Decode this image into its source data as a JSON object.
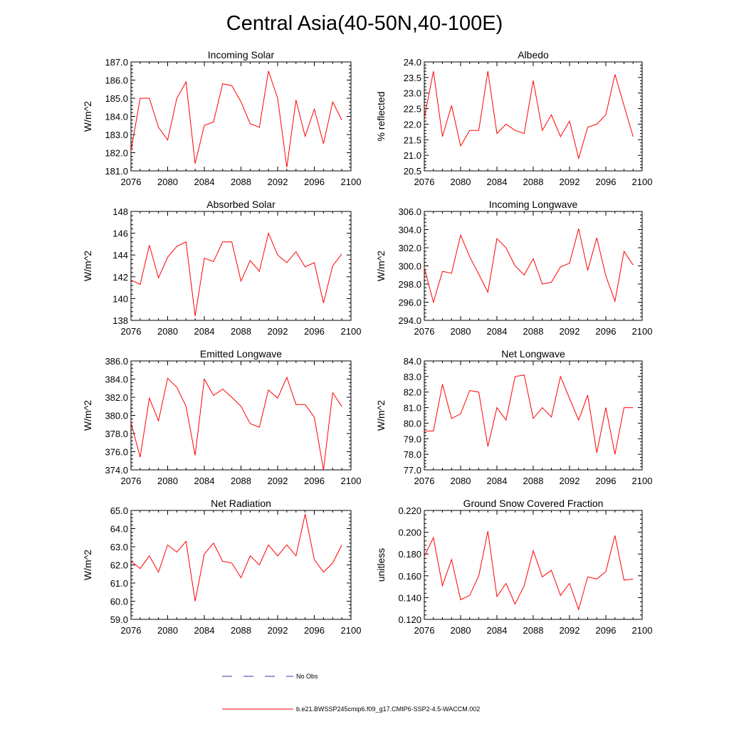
{
  "title": "Central Asia(40-50N,40-100E)",
  "colors": {
    "model": "#ff0000",
    "obs": "#3333aa",
    "axes": "#000000"
  },
  "legend": {
    "obs_label": "No Obs",
    "model_label": "b.e21.BWSSP245cmip6.f09_g17.CMIP6-SSP2-4.5-WACCM.002"
  },
  "chart_data": [
    {
      "type": "line",
      "title": "Incoming Solar",
      "ylabel": "W/m^2",
      "xlim": [
        2076,
        2100
      ],
      "ylim": [
        181.0,
        187.0
      ],
      "xticks": [
        "2076",
        "2080",
        "2084",
        "2088",
        "2092",
        "2096",
        "2100"
      ],
      "yticks": [
        "181.0",
        "182.0",
        "183.0",
        "184.0",
        "185.0",
        "186.0",
        "187.0"
      ],
      "x": [
        2076,
        2077,
        2078,
        2079,
        2080,
        2081,
        2082,
        2083,
        2084,
        2085,
        2086,
        2087,
        2088,
        2089,
        2090,
        2091,
        2092,
        2093,
        2094,
        2095,
        2096,
        2097,
        2098,
        2099
      ],
      "series": [
        {
          "name": "b.e21.BWSSP245cmip6.f09_g17.CMIP6-SSP2-4.5-WACCM.002",
          "values": [
            182.1,
            185.0,
            185.0,
            183.4,
            182.7,
            185.0,
            185.9,
            181.4,
            183.5,
            183.7,
            185.8,
            185.7,
            184.8,
            183.6,
            183.4,
            186.5,
            185.0,
            181.2,
            184.9,
            182.9,
            184.4,
            182.5,
            184.8,
            183.8
          ]
        }
      ]
    },
    {
      "type": "line",
      "title": "Albedo",
      "ylabel": "% reflected",
      "xlim": [
        2076,
        2100
      ],
      "ylim": [
        20.5,
        24.0
      ],
      "xticks": [
        "2076",
        "2080",
        "2084",
        "2088",
        "2092",
        "2096",
        "2100"
      ],
      "yticks": [
        "20.5",
        "21.0",
        "21.5",
        "22.0",
        "22.5",
        "23.0",
        "23.5",
        "24.0"
      ],
      "x": [
        2076,
        2077,
        2078,
        2079,
        2080,
        2081,
        2082,
        2083,
        2084,
        2085,
        2086,
        2087,
        2088,
        2089,
        2090,
        2091,
        2092,
        2093,
        2094,
        2095,
        2096,
        2097,
        2098,
        2099
      ],
      "series": [
        {
          "name": "b.e21.BWSSP245cmip6.f09_g17.CMIP6-SSP2-4.5-WACCM.002",
          "values": [
            22.2,
            23.7,
            21.6,
            22.6,
            21.3,
            21.8,
            21.8,
            23.7,
            21.7,
            22.0,
            21.8,
            21.7,
            23.4,
            21.8,
            22.3,
            21.6,
            22.1,
            20.9,
            21.9,
            22.0,
            22.3,
            23.6,
            22.6,
            21.6
          ]
        }
      ]
    },
    {
      "type": "line",
      "title": "Absorbed Solar",
      "ylabel": "W/m^2",
      "xlim": [
        2076,
        2100
      ],
      "ylim": [
        138,
        148
      ],
      "xticks": [
        "2076",
        "2080",
        "2084",
        "2088",
        "2092",
        "2096",
        "2100"
      ],
      "yticks": [
        "138",
        "140",
        "142",
        "144",
        "146",
        "148"
      ],
      "x": [
        2076,
        2077,
        2078,
        2079,
        2080,
        2081,
        2082,
        2083,
        2084,
        2085,
        2086,
        2087,
        2088,
        2089,
        2090,
        2091,
        2092,
        2093,
        2094,
        2095,
        2096,
        2097,
        2098,
        2099
      ],
      "series": [
        {
          "name": "b.e21.BWSSP245cmip6.f09_g17.CMIP6-SSP2-4.5-WACCM.002",
          "values": [
            141.7,
            141.3,
            144.9,
            141.9,
            143.8,
            144.8,
            145.2,
            138.4,
            143.7,
            143.4,
            145.2,
            145.2,
            141.6,
            143.5,
            142.5,
            146.0,
            144.0,
            143.3,
            144.3,
            142.9,
            143.3,
            139.6,
            143.0,
            144.1
          ]
        }
      ]
    },
    {
      "type": "line",
      "title": "Incoming Longwave",
      "ylabel": "W/m^2",
      "xlim": [
        2076,
        2100
      ],
      "ylim": [
        294.0,
        306.0
      ],
      "xticks": [
        "2076",
        "2080",
        "2084",
        "2088",
        "2092",
        "2096",
        "2100"
      ],
      "yticks": [
        "294.0",
        "296.0",
        "298.0",
        "300.0",
        "302.0",
        "304.0",
        "306.0"
      ],
      "x": [
        2076,
        2077,
        2078,
        2079,
        2080,
        2081,
        2082,
        2083,
        2084,
        2085,
        2086,
        2087,
        2088,
        2089,
        2090,
        2091,
        2092,
        2093,
        2094,
        2095,
        2096,
        2097,
        2098,
        2099
      ],
      "series": [
        {
          "name": "b.e21.BWSSP245cmip6.f09_g17.CMIP6-SSP2-4.5-WACCM.002",
          "values": [
            299.8,
            296.0,
            299.4,
            299.2,
            303.4,
            301.0,
            299.1,
            297.1,
            303.0,
            302.0,
            300.0,
            299.0,
            300.8,
            298.0,
            298.2,
            299.9,
            300.3,
            304.1,
            299.5,
            303.1,
            298.9,
            296.1,
            301.6,
            300.1
          ]
        }
      ]
    },
    {
      "type": "line",
      "title": "Emitted Longwave",
      "ylabel": "W/m^2",
      "xlim": [
        2076,
        2100
      ],
      "ylim": [
        374.0,
        386.0
      ],
      "xticks": [
        "2076",
        "2080",
        "2084",
        "2088",
        "2092",
        "2096",
        "2100"
      ],
      "yticks": [
        "374.0",
        "376.0",
        "378.0",
        "380.0",
        "382.0",
        "384.0",
        "386.0"
      ],
      "x": [
        2076,
        2077,
        2078,
        2079,
        2080,
        2081,
        2082,
        2083,
        2084,
        2085,
        2086,
        2087,
        2088,
        2089,
        2090,
        2091,
        2092,
        2093,
        2094,
        2095,
        2096,
        2097,
        2098,
        2099
      ],
      "series": [
        {
          "name": "b.e21.BWSSP245cmip6.f09_g17.CMIP6-SSP2-4.5-WACCM.002",
          "values": [
            379.2,
            375.4,
            381.9,
            379.4,
            384.1,
            383.1,
            381.0,
            375.6,
            384.0,
            382.2,
            382.9,
            382.0,
            381.0,
            379.1,
            378.7,
            382.8,
            381.9,
            384.2,
            381.2,
            381.2,
            379.8,
            374.0,
            382.5,
            381.0
          ]
        }
      ]
    },
    {
      "type": "line",
      "title": "Net Longwave",
      "ylabel": "W/m^2",
      "xlim": [
        2076,
        2100
      ],
      "ylim": [
        77.0,
        84.0
      ],
      "xticks": [
        "2076",
        "2080",
        "2084",
        "2088",
        "2092",
        "2096",
        "2100"
      ],
      "yticks": [
        "77.0",
        "78.0",
        "79.0",
        "80.0",
        "81.0",
        "82.0",
        "83.0",
        "84.0"
      ],
      "x": [
        2076,
        2077,
        2078,
        2079,
        2080,
        2081,
        2082,
        2083,
        2084,
        2085,
        2086,
        2087,
        2088,
        2089,
        2090,
        2091,
        2092,
        2093,
        2094,
        2095,
        2096,
        2097,
        2098,
        2099
      ],
      "series": [
        {
          "name": "b.e21.BWSSP245cmip6.f09_g17.CMIP6-SSP2-4.5-WACCM.002",
          "values": [
            79.5,
            79.5,
            82.5,
            80.3,
            80.6,
            82.1,
            82.0,
            78.5,
            81.0,
            80.2,
            83.0,
            83.1,
            80.3,
            81.0,
            80.4,
            83.0,
            81.6,
            80.2,
            81.8,
            78.1,
            81.0,
            78.0,
            81.0,
            81.0
          ]
        }
      ]
    },
    {
      "type": "line",
      "title": "Net Radiation",
      "ylabel": "W/m^2",
      "xlim": [
        2076,
        2100
      ],
      "ylim": [
        59.0,
        65.0
      ],
      "xticks": [
        "2076",
        "2080",
        "2084",
        "2088",
        "2092",
        "2096",
        "2100"
      ],
      "yticks": [
        "59.0",
        "60.0",
        "61.0",
        "62.0",
        "63.0",
        "64.0",
        "65.0"
      ],
      "x": [
        2076,
        2077,
        2078,
        2079,
        2080,
        2081,
        2082,
        2083,
        2084,
        2085,
        2086,
        2087,
        2088,
        2089,
        2090,
        2091,
        2092,
        2093,
        2094,
        2095,
        2096,
        2097,
        2098,
        2099
      ],
      "series": [
        {
          "name": "b.e21.BWSSP245cmip6.f09_g17.CMIP6-SSP2-4.5-WACCM.002",
          "values": [
            62.2,
            61.8,
            62.5,
            61.6,
            63.1,
            62.7,
            63.3,
            60.0,
            62.6,
            63.2,
            62.2,
            62.1,
            61.3,
            62.5,
            62.0,
            63.1,
            62.5,
            63.1,
            62.5,
            64.8,
            62.3,
            61.6,
            62.1,
            63.1
          ]
        }
      ]
    },
    {
      "type": "line",
      "title": "Ground Snow Covered Fraction",
      "ylabel": "unitless",
      "xlim": [
        2076,
        2100
      ],
      "ylim": [
        0.12,
        0.22
      ],
      "xticks": [
        "2076",
        "2080",
        "2084",
        "2088",
        "2092",
        "2096",
        "2100"
      ],
      "yticks": [
        "0.120",
        "0.140",
        "0.160",
        "0.180",
        "0.200",
        "0.220"
      ],
      "x": [
        2076,
        2077,
        2078,
        2079,
        2080,
        2081,
        2082,
        2083,
        2084,
        2085,
        2086,
        2087,
        2088,
        2089,
        2090,
        2091,
        2092,
        2093,
        2094,
        2095,
        2096,
        2097,
        2098,
        2099
      ],
      "series": [
        {
          "name": "b.e21.BWSSP245cmip6.f09_g17.CMIP6-SSP2-4.5-WACCM.002",
          "values": [
            0.178,
            0.195,
            0.151,
            0.175,
            0.138,
            0.142,
            0.16,
            0.201,
            0.141,
            0.153,
            0.134,
            0.151,
            0.183,
            0.159,
            0.165,
            0.142,
            0.153,
            0.129,
            0.159,
            0.157,
            0.164,
            0.197,
            0.156,
            0.157
          ]
        }
      ]
    }
  ]
}
